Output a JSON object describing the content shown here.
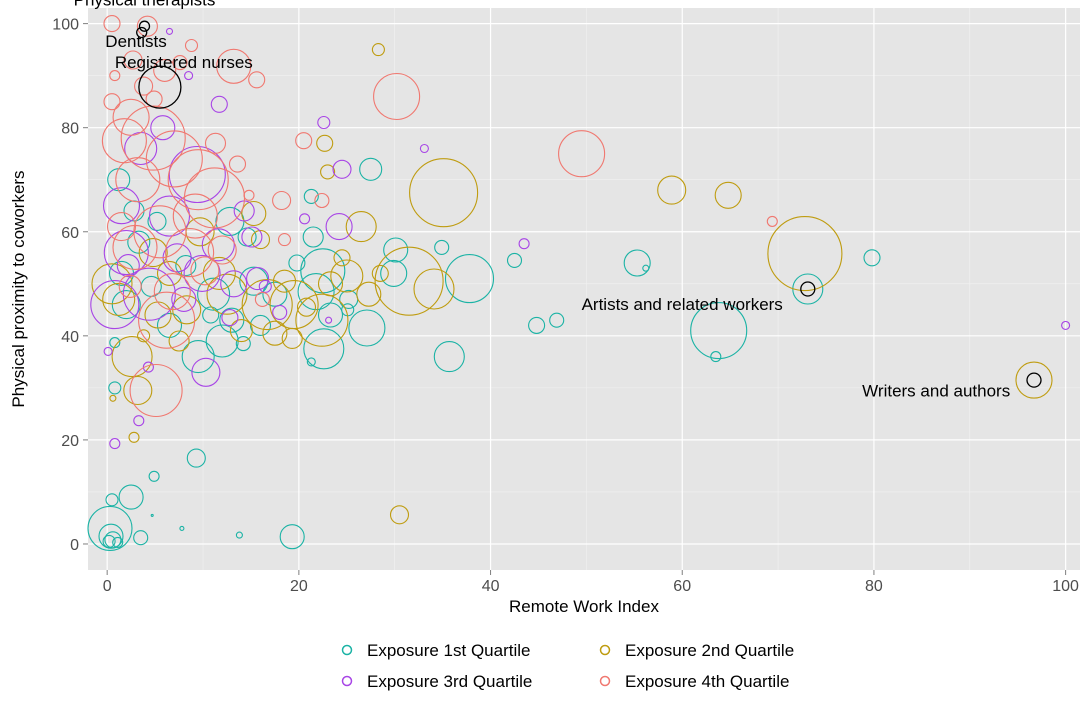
{
  "chart_data": {
    "type": "scatter",
    "title": "",
    "xlabel": "Remote Work Index",
    "ylabel": "Physical proximity to coworkers",
    "xlim": [
      -2,
      101.5
    ],
    "ylim": [
      -5,
      103
    ],
    "xticks": [
      0,
      20,
      40,
      60,
      80,
      100
    ],
    "yticks": [
      0,
      20,
      40,
      60,
      80,
      100
    ],
    "grid": true,
    "legend_position": "bottom",
    "colors": {
      "q1": "#1bb3a5",
      "q2": "#bf9c10",
      "q3": "#a845e6",
      "q4": "#f07870",
      "highlight": "#000000",
      "panel": "#e5e5e5",
      "grid": "#ffffff"
    },
    "legend": [
      {
        "key": "q1",
        "label": "Exposure 1st Quartile"
      },
      {
        "key": "q2",
        "label": "Exposure 2nd Quartile"
      },
      {
        "key": "q3",
        "label": "Exposure 3rd Quartile"
      },
      {
        "key": "q4",
        "label": "Exposure 4th Quartile"
      }
    ],
    "series": [
      {
        "name": "Exposure 1st Quartile",
        "key": "q1",
        "points": [
          [
            0.3,
            3,
            22
          ],
          [
            0.4,
            1.5,
            12
          ],
          [
            0.6,
            0.8,
            8
          ],
          [
            0.2,
            0.5,
            6
          ],
          [
            1.1,
            0.3,
            5
          ],
          [
            0.5,
            8.5,
            6
          ],
          [
            2.5,
            9,
            12
          ],
          [
            3.5,
            1.2,
            7
          ],
          [
            4.9,
            13,
            5
          ],
          [
            9.3,
            16.5,
            9
          ],
          [
            7.8,
            3,
            2
          ],
          [
            13.8,
            1.7,
            3
          ],
          [
            19.3,
            1.4,
            12
          ],
          [
            0.8,
            30,
            6
          ],
          [
            12,
            39,
            16
          ],
          [
            9.5,
            36,
            16
          ],
          [
            21.3,
            35,
            4
          ],
          [
            22.6,
            37.5,
            20
          ],
          [
            27.1,
            41.5,
            18
          ],
          [
            23.3,
            44,
            12
          ],
          [
            25.2,
            47,
            9
          ],
          [
            29.9,
            52,
            13
          ],
          [
            30.1,
            56.5,
            12
          ],
          [
            27.5,
            72,
            11
          ],
          [
            21.5,
            59,
            10
          ],
          [
            22.5,
            52.5,
            22
          ],
          [
            21.8,
            48.5,
            18
          ],
          [
            34.9,
            57,
            7
          ],
          [
            35.7,
            36,
            15
          ],
          [
            37.8,
            51,
            24
          ],
          [
            42.5,
            54.5,
            7
          ],
          [
            44.8,
            42,
            8
          ],
          [
            46.9,
            43,
            7
          ],
          [
            55.3,
            54,
            13
          ],
          [
            56.2,
            53,
            3
          ],
          [
            63.5,
            36,
            5
          ],
          [
            63.8,
            41,
            28
          ],
          [
            73.1,
            49,
            15
          ],
          [
            79.8,
            55,
            8
          ],
          [
            11.1,
            48,
            16
          ],
          [
            13,
            43,
            12
          ],
          [
            15.3,
            50.5,
            14
          ],
          [
            17.5,
            48,
            12
          ],
          [
            16,
            42,
            10
          ],
          [
            6.5,
            42,
            12
          ],
          [
            4.6,
            49.5,
            10
          ],
          [
            2,
            46,
            14
          ],
          [
            1.5,
            52,
            12
          ],
          [
            3.3,
            58,
            11
          ],
          [
            2.8,
            64,
            10
          ],
          [
            5.2,
            62,
            9
          ],
          [
            12.8,
            62,
            14
          ],
          [
            14.6,
            59,
            9
          ],
          [
            21.3,
            66.8,
            7
          ],
          [
            8.2,
            53.5,
            10
          ],
          [
            10.8,
            44,
            8
          ],
          [
            14.2,
            38.5,
            7
          ],
          [
            19.8,
            54,
            8
          ],
          [
            25.1,
            45,
            6
          ],
          [
            1.2,
            70,
            11
          ],
          [
            0.8,
            38.7,
            5
          ],
          [
            4.7,
            5.5,
            1
          ]
        ]
      },
      {
        "name": "Exposure 2nd Quartile",
        "key": "q2",
        "points": [
          [
            0.5,
            50,
            20
          ],
          [
            1.2,
            47,
            16
          ],
          [
            2.6,
            36,
            20
          ],
          [
            3.2,
            29.5,
            14
          ],
          [
            2.8,
            20.5,
            5
          ],
          [
            4.8,
            56,
            14
          ],
          [
            6.5,
            52,
            12
          ],
          [
            8.3,
            45,
            14
          ],
          [
            12.5,
            48,
            20
          ],
          [
            16.7,
            46,
            25
          ],
          [
            19.5,
            46,
            24
          ],
          [
            17.5,
            40.5,
            12
          ],
          [
            19.3,
            39.5,
            10
          ],
          [
            22.4,
            43,
            26
          ],
          [
            23.3,
            50,
            12
          ],
          [
            24.5,
            55,
            8
          ],
          [
            25,
            51.5,
            16
          ],
          [
            26.5,
            61,
            15
          ],
          [
            27.3,
            48,
            12
          ],
          [
            28.5,
            52,
            8
          ],
          [
            31.5,
            50.5,
            34
          ],
          [
            34.1,
            49,
            20
          ],
          [
            35.1,
            67.5,
            34
          ],
          [
            22.7,
            77,
            8
          ],
          [
            23,
            71.5,
            7
          ],
          [
            28.3,
            95,
            6
          ],
          [
            30.5,
            5.6,
            9
          ],
          [
            15.3,
            63.5,
            12
          ],
          [
            16,
            58.5,
            9
          ],
          [
            20.8,
            45.5,
            9
          ],
          [
            58.9,
            68,
            14
          ],
          [
            64.8,
            67,
            13
          ],
          [
            72.8,
            55.8,
            37
          ],
          [
            96.7,
            31.5,
            18
          ],
          [
            9.7,
            60,
            14
          ],
          [
            11.7,
            52,
            16
          ],
          [
            5.3,
            44,
            13
          ],
          [
            7.5,
            39,
            10
          ],
          [
            3.8,
            40,
            6
          ],
          [
            0.6,
            28,
            3
          ],
          [
            14,
            41,
            11
          ],
          [
            18.5,
            50.5,
            11
          ]
        ]
      },
      {
        "name": "Exposure 3rd Quartile",
        "key": "q3",
        "points": [
          [
            0.8,
            19.3,
            5
          ],
          [
            3.3,
            23.7,
            5
          ],
          [
            6.5,
            98.5,
            3
          ],
          [
            11.7,
            84.5,
            8
          ],
          [
            22.6,
            81,
            6
          ],
          [
            24.5,
            72,
            9
          ],
          [
            33.1,
            76,
            4
          ],
          [
            24.2,
            61,
            13
          ],
          [
            15.1,
            59,
            10
          ],
          [
            23.1,
            43,
            3
          ],
          [
            43.5,
            57.7,
            5
          ],
          [
            100,
            42,
            4
          ],
          [
            0.8,
            46,
            24
          ],
          [
            2,
            56,
            22
          ],
          [
            4.4,
            48,
            26
          ],
          [
            6.5,
            63,
            20
          ],
          [
            9.4,
            71,
            28
          ],
          [
            11.6,
            57.5,
            16
          ],
          [
            13.2,
            50,
            13
          ],
          [
            10.3,
            33,
            14
          ],
          [
            8,
            47,
            12
          ],
          [
            1.5,
            65,
            18
          ],
          [
            3.5,
            76,
            16
          ],
          [
            5.8,
            80,
            12
          ],
          [
            14.3,
            64,
            10
          ],
          [
            15.7,
            51,
            11
          ],
          [
            18,
            44.5,
            7
          ],
          [
            20.6,
            62.5,
            5
          ],
          [
            2.2,
            53.5,
            11
          ],
          [
            7.3,
            55,
            14
          ],
          [
            12.8,
            43.5,
            8
          ],
          [
            0.1,
            37,
            4
          ],
          [
            4.3,
            34,
            5
          ],
          [
            9.9,
            52,
            18
          ],
          [
            16.5,
            49.5,
            6
          ],
          [
            8.5,
            90,
            4
          ]
        ]
      },
      {
        "name": "Exposure 4th Quartile",
        "key": "q4",
        "points": [
          [
            0.5,
            100,
            8
          ],
          [
            4.2,
            99.5,
            10
          ],
          [
            2.7,
            93,
            9
          ],
          [
            3.8,
            88,
            9
          ],
          [
            6,
            91,
            11
          ],
          [
            7.6,
            92.5,
            7
          ],
          [
            8.8,
            95.8,
            6
          ],
          [
            13.2,
            91.8,
            17
          ],
          [
            15.6,
            89.2,
            8
          ],
          [
            30.2,
            86,
            23
          ],
          [
            20.5,
            77.5,
            8
          ],
          [
            49.5,
            75,
            23
          ],
          [
            69.4,
            62,
            5
          ],
          [
            0.5,
            85,
            8
          ],
          [
            2.5,
            82,
            18
          ],
          [
            1.8,
            77.5,
            22
          ],
          [
            4.8,
            78,
            32
          ],
          [
            7,
            74,
            28
          ],
          [
            9.5,
            70,
            30
          ],
          [
            3.2,
            70,
            22
          ],
          [
            11.2,
            66.5,
            30
          ],
          [
            13.6,
            73,
            8
          ],
          [
            18.2,
            66,
            9
          ],
          [
            22.4,
            66,
            7
          ],
          [
            5.1,
            29.5,
            26
          ],
          [
            6.2,
            43,
            28
          ],
          [
            2.9,
            57,
            22
          ],
          [
            5.5,
            60,
            26
          ],
          [
            8.6,
            56,
            24
          ],
          [
            12,
            56.5,
            14
          ],
          [
            10.2,
            52.5,
            14
          ],
          [
            9.2,
            63,
            22
          ],
          [
            2.4,
            49.5,
            11
          ],
          [
            1.5,
            61,
            14
          ],
          [
            0.8,
            90,
            5
          ],
          [
            16.2,
            47,
            7
          ],
          [
            6.8,
            48.5,
            18
          ],
          [
            14.8,
            67,
            5
          ],
          [
            18.5,
            58.5,
            6
          ],
          [
            11.3,
            77,
            10
          ],
          [
            4.9,
            85.5,
            8
          ]
        ]
      },
      {
        "name": "",
        "key": "highlight",
        "points": [
          [
            3.9,
            99.5,
            5
          ],
          [
            3.6,
            98.3,
            5
          ],
          [
            5.5,
            87.8,
            21
          ],
          [
            73.1,
            49,
            7
          ],
          [
            96.7,
            31.5,
            7
          ]
        ]
      }
    ],
    "annotations": [
      {
        "text": "Physical therapists",
        "x": 3.9,
        "y": 103.5,
        "anchor": "middle"
      },
      {
        "text": "Dentists",
        "x": -0.2,
        "y": 95.5,
        "anchor": "start"
      },
      {
        "text": "Registered nurses",
        "x": 8,
        "y": 91.5,
        "anchor": "middle"
      },
      {
        "text": "Artists and related workers",
        "x": 60,
        "y": 45,
        "anchor": "middle"
      },
      {
        "text": "Writers and authors",
        "x": 86.5,
        "y": 28.3,
        "anchor": "middle"
      }
    ]
  }
}
